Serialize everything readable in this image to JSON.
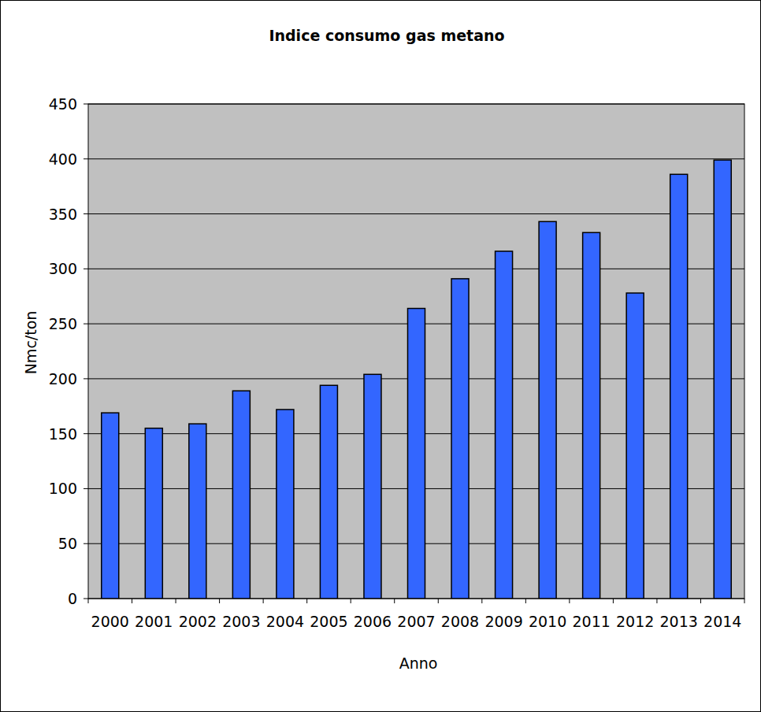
{
  "chart_data": {
    "type": "bar",
    "title": "Indice consumo gas metano",
    "x_label": "Anno",
    "y_label": "Nmc/ton",
    "categories": [
      "2000",
      "2001",
      "2002",
      "2003",
      "2004",
      "2005",
      "2006",
      "2007",
      "2008",
      "2009",
      "2010",
      "2011",
      "2012",
      "2013",
      "2014"
    ],
    "values": [
      169,
      155,
      159,
      189,
      172,
      194,
      204,
      264,
      291,
      316,
      343,
      333,
      278,
      386,
      399
    ],
    "color": "#3366ff",
    "ylim": [
      0,
      450
    ],
    "yticks": [
      0,
      50,
      100,
      150,
      200,
      250,
      300,
      350,
      400,
      450
    ],
    "grid": true
  }
}
